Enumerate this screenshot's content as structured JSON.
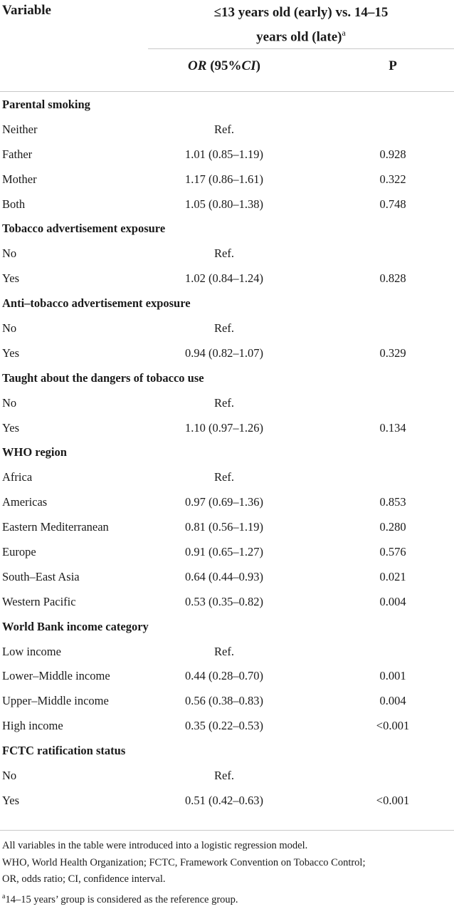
{
  "header": {
    "variable": "Variable",
    "group_line1": "≤13 years old (early) vs. 14–15",
    "group_line2": "years old (late)",
    "group_sup": "a",
    "or_italic": "OR",
    "or_plain": " (95%",
    "ci_italic": "CI",
    "or_close": ")",
    "p": "P"
  },
  "rows": [
    {
      "type": "section",
      "label": "Parental smoking",
      "or": "",
      "p": ""
    },
    {
      "type": "item",
      "label": "Neither",
      "or": "Ref.",
      "p": ""
    },
    {
      "type": "item",
      "label": "Father",
      "or": "1.01 (0.85–1.19)",
      "p": "0.928"
    },
    {
      "type": "item",
      "label": "Mother",
      "or": "1.17 (0.86–1.61)",
      "p": "0.322"
    },
    {
      "type": "item",
      "label": "Both",
      "or": "1.05 (0.80–1.38)",
      "p": "0.748"
    },
    {
      "type": "section",
      "label": "Tobacco advertisement exposure",
      "or": "",
      "p": ""
    },
    {
      "type": "item",
      "label": "No",
      "or": "Ref.",
      "p": ""
    },
    {
      "type": "item",
      "label": "Yes",
      "or": "1.02 (0.84–1.24)",
      "p": "0.828"
    },
    {
      "type": "section",
      "label": "Anti–tobacco advertisement exposure",
      "or": "",
      "p": ""
    },
    {
      "type": "item",
      "label": "No",
      "or": "Ref.",
      "p": ""
    },
    {
      "type": "item",
      "label": "Yes",
      "or": "0.94 (0.82–1.07)",
      "p": "0.329"
    },
    {
      "type": "section",
      "label": "Taught about the dangers of tobacco use",
      "or": "",
      "p": ""
    },
    {
      "type": "item",
      "label": "No",
      "or": "Ref.",
      "p": ""
    },
    {
      "type": "item",
      "label": "Yes",
      "or": "1.10 (0.97–1.26)",
      "p": "0.134"
    },
    {
      "type": "section",
      "label": "WHO region",
      "or": "",
      "p": ""
    },
    {
      "type": "item",
      "label": "Africa",
      "or": "Ref.",
      "p": ""
    },
    {
      "type": "item",
      "label": "Americas",
      "or": "0.97 (0.69–1.36)",
      "p": "0.853"
    },
    {
      "type": "item",
      "label": "Eastern Mediterranean",
      "or": "0.81 (0.56–1.19)",
      "p": "0.280"
    },
    {
      "type": "item",
      "label": "Europe",
      "or": "0.91 (0.65–1.27)",
      "p": "0.576"
    },
    {
      "type": "item",
      "label": "South–East Asia",
      "or": "0.64 (0.44–0.93)",
      "p": "0.021"
    },
    {
      "type": "item",
      "label": "Western Pacific",
      "or": "0.53 (0.35–0.82)",
      "p": "0.004"
    },
    {
      "type": "section",
      "label": "World Bank income category",
      "or": "",
      "p": ""
    },
    {
      "type": "item",
      "label": "Low income",
      "or": "Ref.",
      "p": ""
    },
    {
      "type": "item",
      "label": "Lower–Middle income",
      "or": "0.44 (0.28–0.70)",
      "p": "0.001"
    },
    {
      "type": "item",
      "label": "Upper–Middle income",
      "or": "0.56 (0.38–0.83)",
      "p": "0.004"
    },
    {
      "type": "item",
      "label": "High income",
      "or": "0.35 (0.22–0.53)",
      "p": "<0.001"
    },
    {
      "type": "section",
      "label": "FCTC ratification status",
      "or": "",
      "p": ""
    },
    {
      "type": "item",
      "label": "No",
      "or": "Ref.",
      "p": ""
    },
    {
      "type": "item",
      "label": "Yes",
      "or": "0.51 (0.42–0.63)",
      "p": "<0.001"
    }
  ],
  "footnotes": {
    "line1": "All variables in the table were introduced into a logistic regression model.",
    "line2": "WHO, World Health Organization; FCTC, Framework Convention on Tobacco Control;",
    "line3": "OR, odds ratio; CI, confidence interval.",
    "line4_sup": "a",
    "line4": "14–15 years’ group is considered as the reference group."
  }
}
